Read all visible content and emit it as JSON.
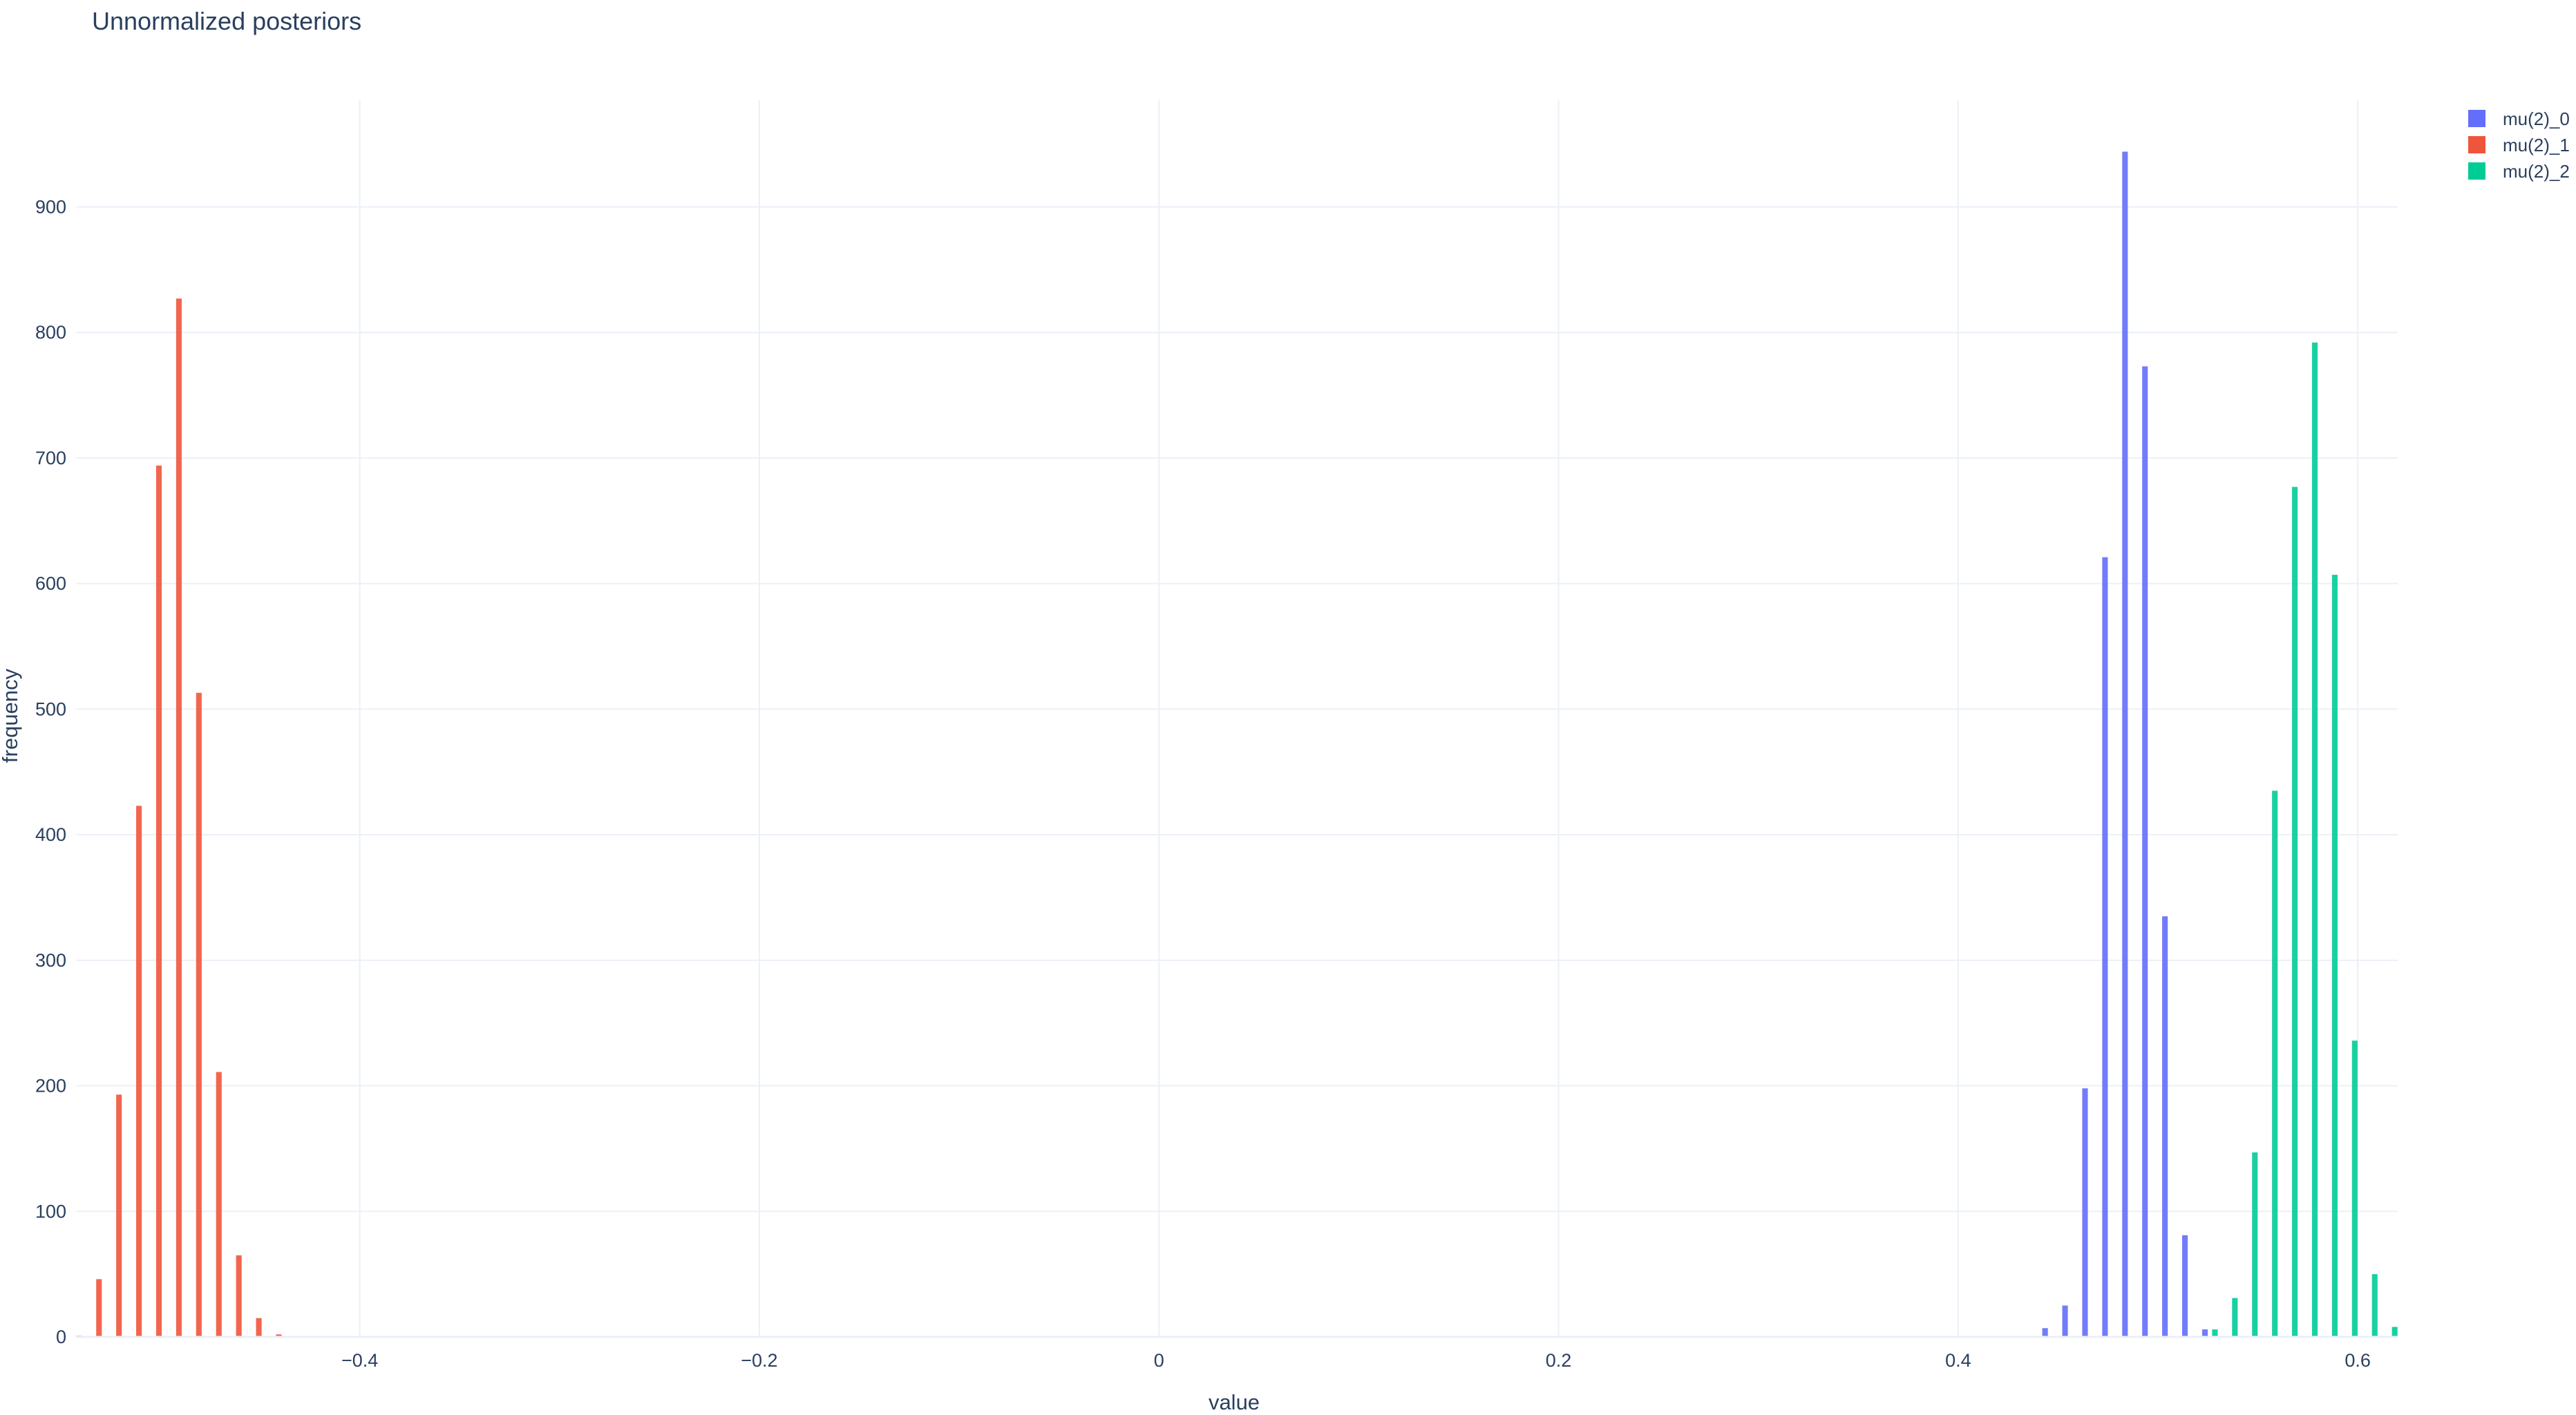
{
  "chart_data": {
    "type": "bar",
    "title": "Unnormalized posteriors",
    "xlabel": "value",
    "ylabel": "frequency",
    "xlim": [
      -0.542,
      0.62
    ],
    "ylim": [
      0,
      985
    ],
    "grid": true,
    "legend_position": "top-right",
    "x_ticks": [
      -0.4,
      -0.2,
      0,
      0.2,
      0.4,
      0.6
    ],
    "x_tick_labels": [
      "−0.4",
      "−0.2",
      "0",
      "0.2",
      "0.4",
      "0.6"
    ],
    "y_ticks": [
      0,
      100,
      200,
      300,
      400,
      500,
      600,
      700,
      800,
      900
    ],
    "y_tick_labels": [
      "0",
      "100",
      "200",
      "300",
      "400",
      "500",
      "600",
      "700",
      "800",
      "900"
    ],
    "series": [
      {
        "name": "mu(2)_0",
        "color": "#636efa",
        "x": [
          0.4435,
          0.4535,
          0.4635,
          0.4735,
          0.4835,
          0.4935,
          0.5035,
          0.5135,
          0.5235
        ],
        "values": [
          7,
          25,
          198,
          621,
          944,
          773,
          335,
          81,
          6
        ]
      },
      {
        "name": "mu(2)_1",
        "color": "#EF553B",
        "x": [
          -0.5405,
          -0.5305,
          -0.5205,
          -0.5105,
          -0.5005,
          -0.4905,
          -0.4805,
          -0.4705,
          -0.4605,
          -0.4505,
          -0.4405
        ],
        "values": [
          1,
          46,
          193,
          423,
          694,
          827,
          513,
          211,
          65,
          15,
          2
        ]
      },
      {
        "name": "mu(2)_2",
        "color": "#00cc96",
        "x": [
          0.5285,
          0.5385,
          0.5485,
          0.5585,
          0.5685,
          0.5785,
          0.5885,
          0.5985,
          0.6085,
          0.6185
        ],
        "values": [
          6,
          31,
          147,
          435,
          677,
          792,
          607,
          236,
          50,
          8
        ]
      }
    ]
  }
}
